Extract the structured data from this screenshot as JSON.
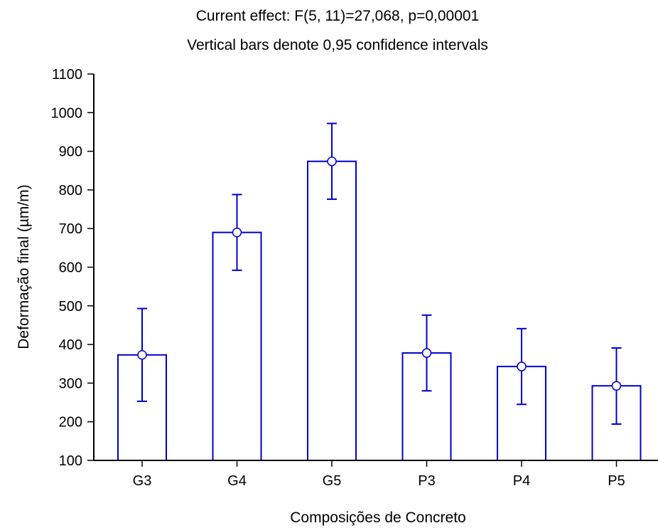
{
  "chart_data": {
    "type": "bar",
    "title": "Current effect: F(5, 11)=27,068, p=0,00001",
    "subtitle": "Vertical bars denote 0,95 confidence intervals",
    "xlabel": "Composições de Concreto",
    "ylabel": "Deformação final (µm/m)",
    "categories": [
      "G3",
      "G4",
      "G5",
      "P3",
      "P4",
      "P5"
    ],
    "values": [
      373,
      690,
      874,
      378,
      343,
      293
    ],
    "ci_lower": [
      253,
      592,
      776,
      280,
      245,
      194
    ],
    "ci_upper": [
      493,
      788,
      972,
      476,
      441,
      391
    ],
    "ylim": [
      100,
      1100
    ],
    "yticks": [
      100,
      200,
      300,
      400,
      500,
      600,
      700,
      800,
      900,
      1000,
      1100
    ],
    "grid": false,
    "colors": {
      "bar_stroke": "#0000cc",
      "bar_fill": "#ffffff",
      "axis": "#000000",
      "marker_fill": "#ffffff"
    }
  }
}
